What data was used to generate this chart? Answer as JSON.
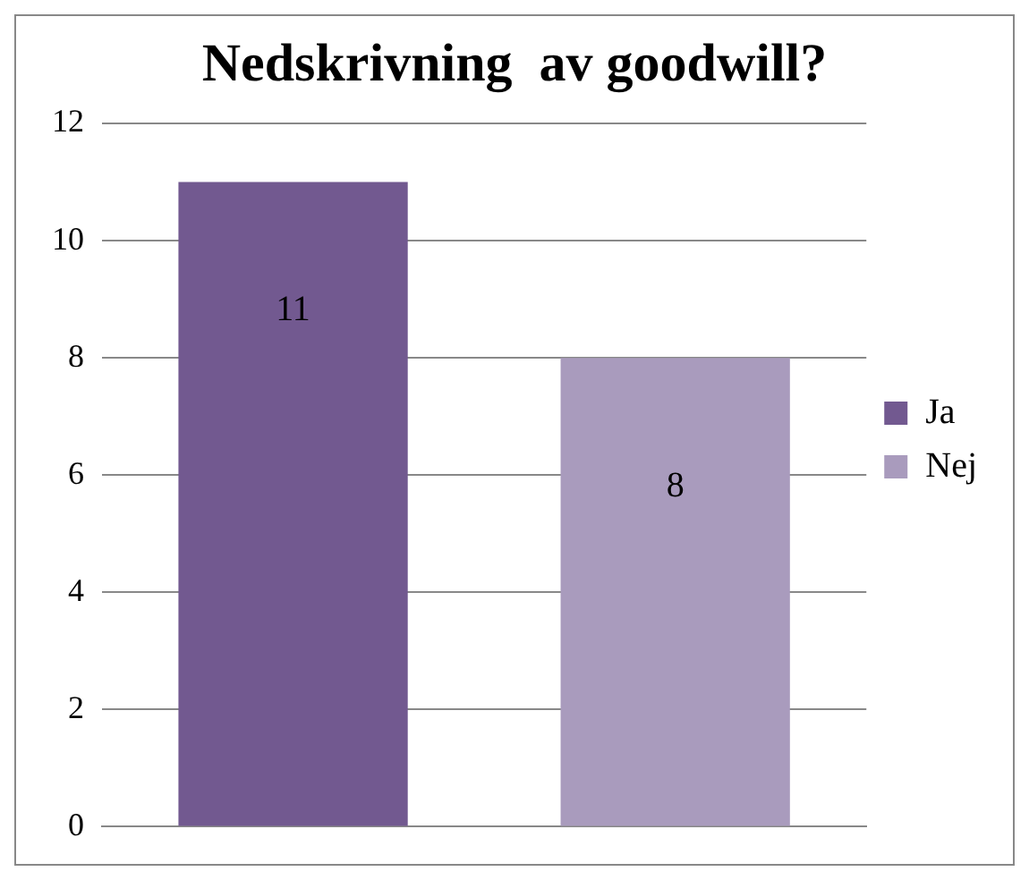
{
  "chart_data": {
    "type": "bar",
    "title": "Nedskrivning  av goodwill?",
    "categories": [
      null
    ],
    "series": [
      {
        "name": "Ja",
        "color": "#725990",
        "values": [
          11
        ]
      },
      {
        "name": "Nej",
        "color": "#a99bbd",
        "values": [
          8
        ]
      }
    ],
    "ylim": [
      0,
      12
    ],
    "yticks": [
      0,
      2,
      4,
      6,
      8,
      10,
      12
    ],
    "grid": "y",
    "legend": "right",
    "data_labels": true
  }
}
